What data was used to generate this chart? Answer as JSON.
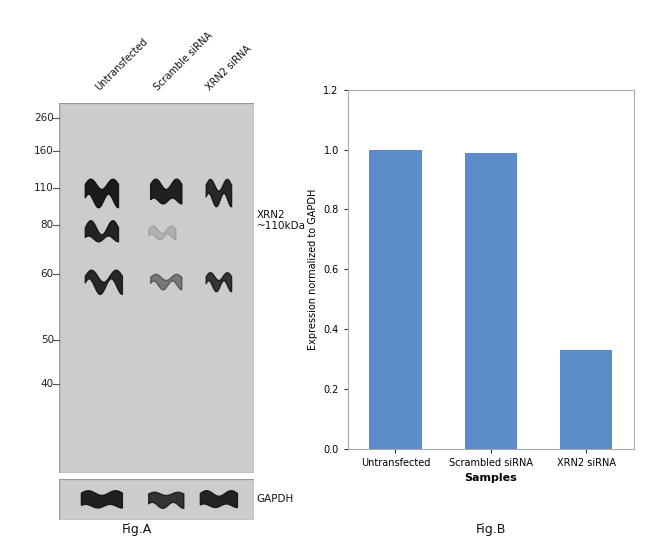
{
  "fig_width": 6.5,
  "fig_height": 5.44,
  "dpi": 100,
  "background_color": "#ffffff",
  "western_blot": {
    "gel_bg_color": "#cccccc",
    "gel_edge_color": "#999999",
    "mw_labels": [
      260,
      160,
      110,
      80,
      60,
      50,
      40
    ],
    "col_labels": [
      "Untransfected",
      "Scramble siRNA",
      "XRN2 siRNA"
    ],
    "xrn2_label": "XRN2\n~110kDa",
    "gapdh_label": "GAPDH",
    "figA_label": "Fig.A",
    "label_fontsize": 7.5
  },
  "bar_chart": {
    "categories": [
      "Untransfected",
      "Scrambled siRNA",
      "XRN2 siRNA"
    ],
    "values": [
      1.0,
      0.99,
      0.33
    ],
    "bar_color": "#5b8dc8",
    "bar_width": 0.55,
    "ylim": [
      0,
      1.2
    ],
    "yticks": [
      0,
      0.2,
      0.4,
      0.6,
      0.8,
      1.0,
      1.2
    ],
    "xlabel": "Samples",
    "ylabel": "Expression normalized to GAPDH",
    "xlabel_fontsize": 8,
    "ylabel_fontsize": 7,
    "tick_fontsize": 7,
    "figB_label": "Fig.B"
  }
}
